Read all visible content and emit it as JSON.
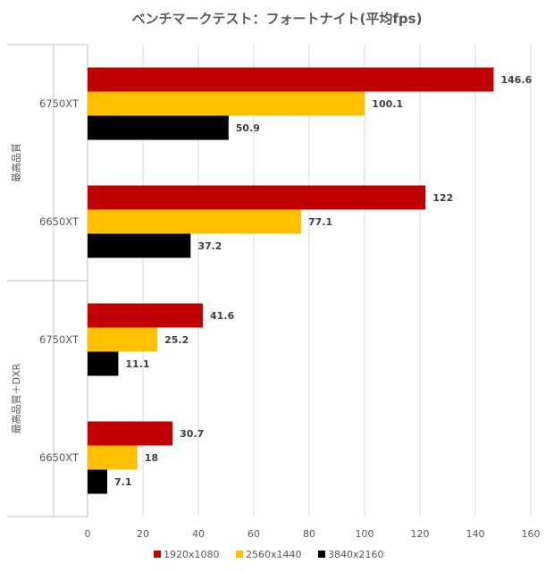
{
  "chart_data": {
    "type": "bar",
    "orientation": "horizontal",
    "title": "ベンチマークテスト：フォートナイト(平均fps)",
    "groups": [
      {
        "label": "最高品質",
        "categories": [
          "6750XT",
          "6650XT"
        ]
      },
      {
        "label": "最高品質＋DXR",
        "categories": [
          "6750XT",
          "6650XT"
        ]
      }
    ],
    "series": [
      {
        "name": "1920x1080",
        "color": "#C00000",
        "values": [
          146.6,
          122,
          41.6,
          30.7
        ]
      },
      {
        "name": "2560x1440",
        "color": "#FFC000",
        "values": [
          100.1,
          77.1,
          25.2,
          18
        ]
      },
      {
        "name": "3840x2160",
        "color": "#000000",
        "values": [
          50.9,
          37.2,
          11.1,
          7.1
        ]
      }
    ],
    "xlim": [
      0,
      160
    ],
    "xticks": [
      0,
      20,
      40,
      60,
      80,
      100,
      120,
      140,
      160
    ],
    "grid": true,
    "legend": "bottom"
  }
}
